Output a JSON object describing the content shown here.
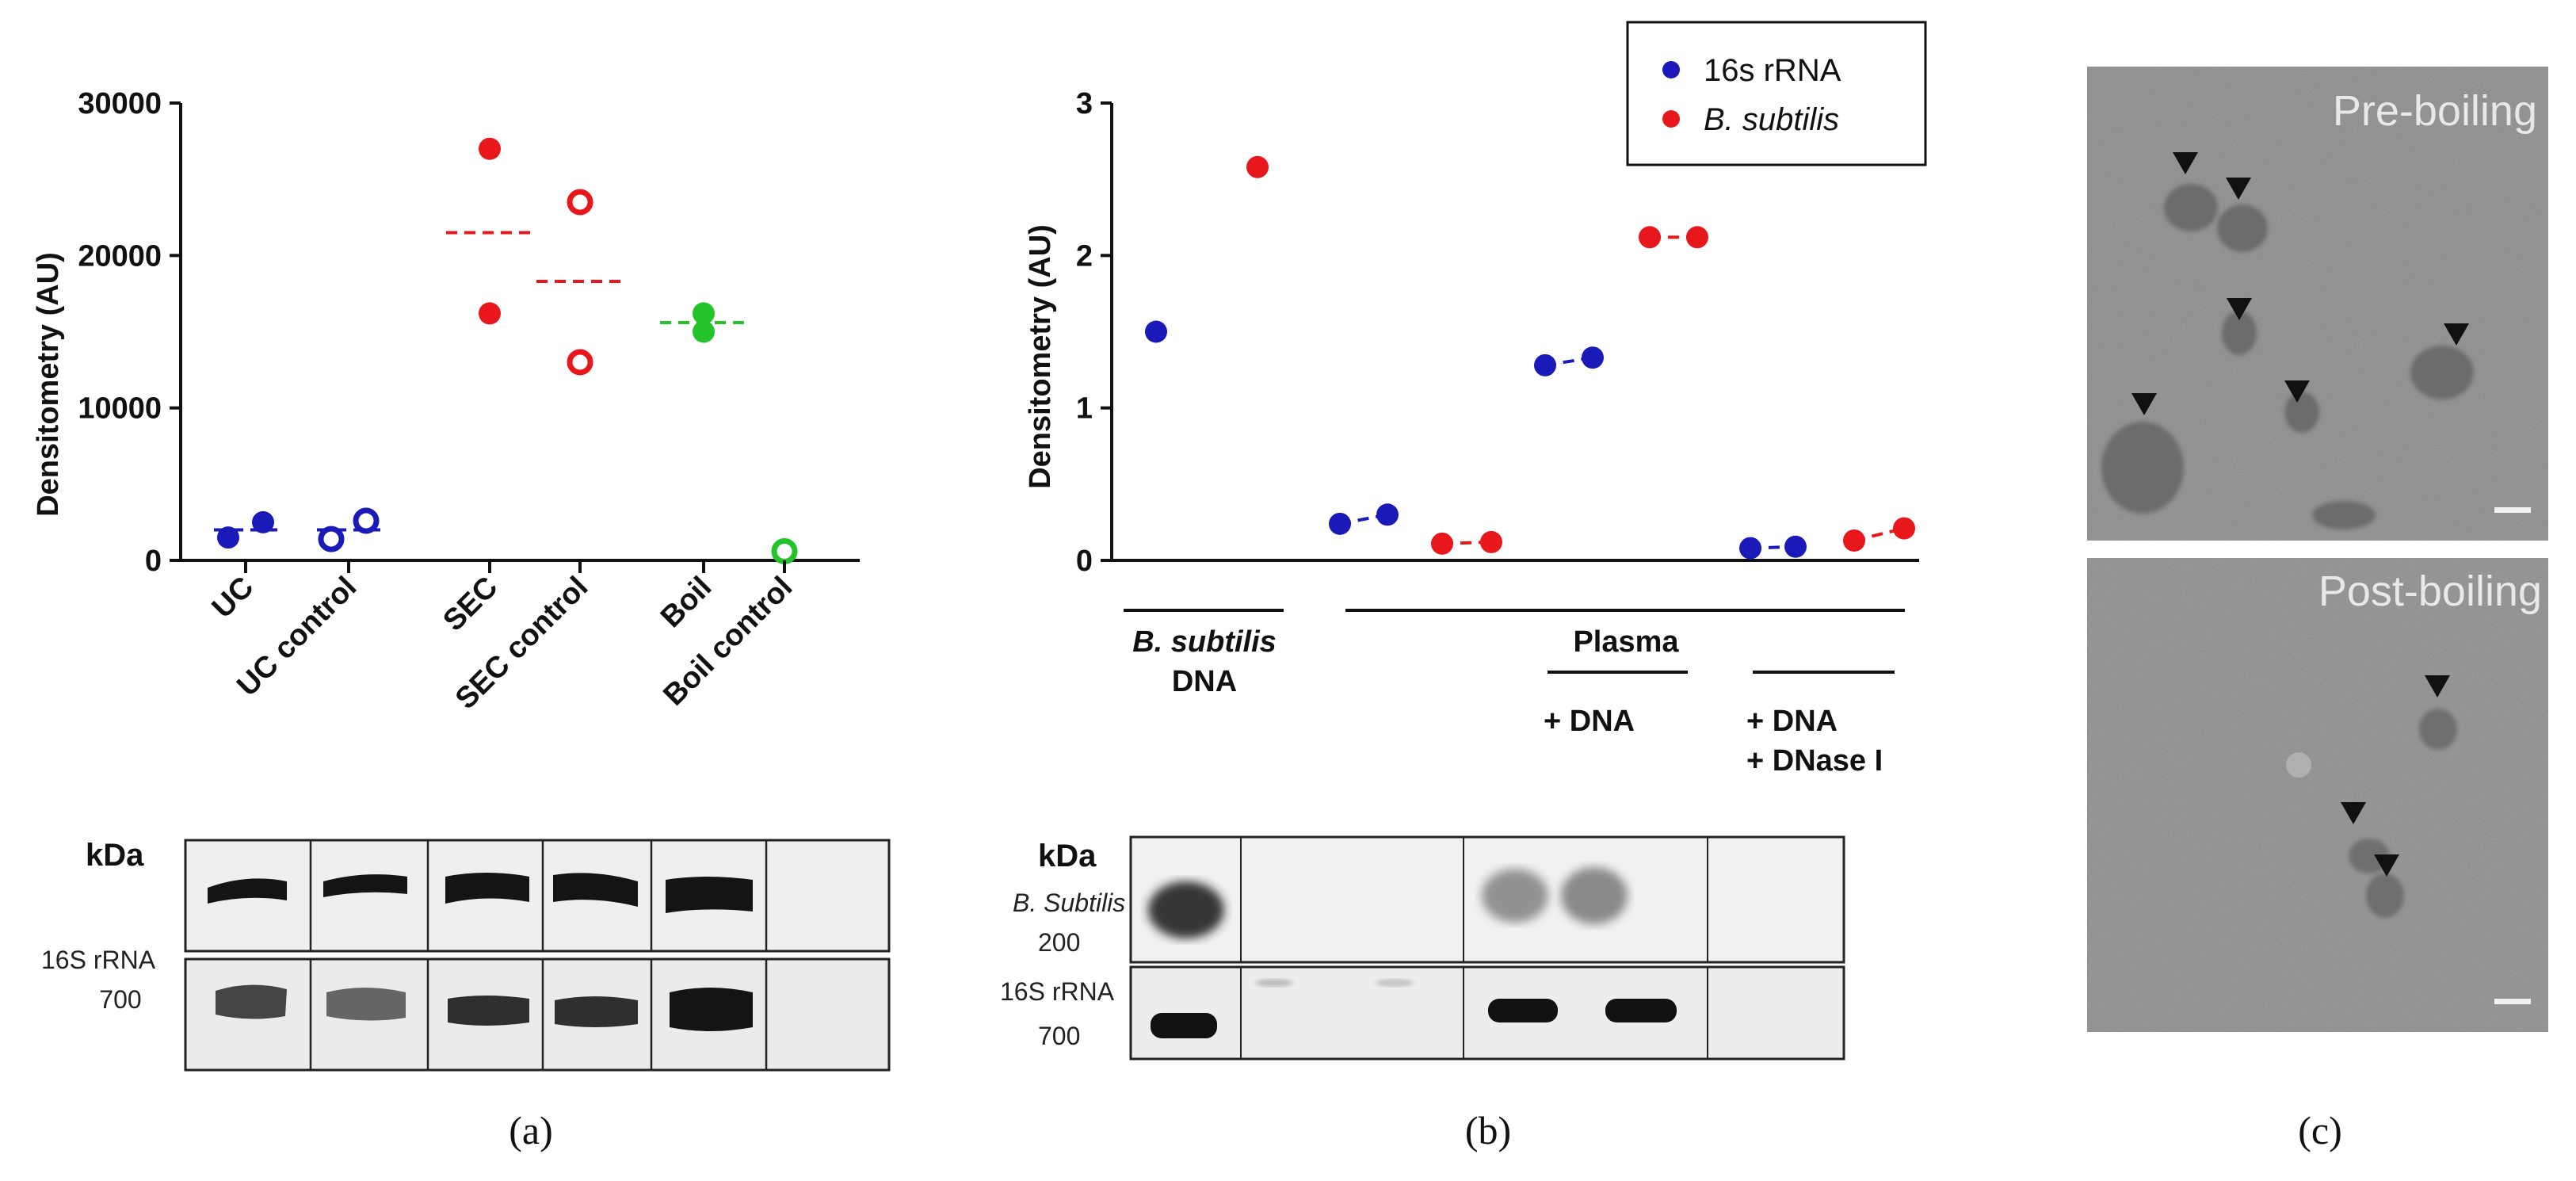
{
  "panel_labels": {
    "a": "(a)",
    "b": "(b)",
    "c": "(c)"
  },
  "colors": {
    "blue": "#1a1ab8",
    "red": "#e8171b",
    "green": "#22c42a"
  },
  "chart_data": [
    {
      "id": "a",
      "type": "scatter",
      "ylabel": "Densitometry (AU)",
      "ylim": [
        0,
        30000
      ],
      "yticks": [
        0,
        10000,
        20000,
        30000
      ],
      "categories": [
        "UC",
        "UC control",
        "SEC",
        "SEC control",
        "Boil",
        "Boil control"
      ],
      "points": [
        {
          "cat": 0,
          "y": 1500,
          "color": "blue",
          "hollow": false
        },
        {
          "cat": 0,
          "y": 2500,
          "color": "blue",
          "hollow": false
        },
        {
          "cat": 1,
          "y": 1400,
          "color": "blue",
          "hollow": true
        },
        {
          "cat": 1,
          "y": 2600,
          "color": "blue",
          "hollow": true
        },
        {
          "cat": 2,
          "y": 27000,
          "color": "red",
          "hollow": false
        },
        {
          "cat": 2,
          "y": 16200,
          "color": "red",
          "hollow": false
        },
        {
          "cat": 3,
          "y": 23500,
          "color": "red",
          "hollow": true
        },
        {
          "cat": 3,
          "y": 13000,
          "color": "red",
          "hollow": true
        },
        {
          "cat": 4,
          "y": 16200,
          "color": "green",
          "hollow": false
        },
        {
          "cat": 4,
          "y": 15000,
          "color": "green",
          "hollow": false
        },
        {
          "cat": 5,
          "y": 600,
          "color": "green",
          "hollow": true
        }
      ],
      "means": [
        {
          "cat": 0,
          "y": 2000,
          "color": "blue"
        },
        {
          "cat": 1,
          "y": 2000,
          "color": "blue"
        },
        {
          "cat": 2,
          "y": 21500,
          "color": "red"
        },
        {
          "cat": 3,
          "y": 18300,
          "color": "red"
        },
        {
          "cat": 4,
          "y": 15600,
          "color": "green"
        }
      ]
    },
    {
      "id": "b",
      "type": "scatter",
      "ylabel": "Densitometry (AU)",
      "ylim": [
        0,
        3
      ],
      "yticks": [
        0,
        1,
        2,
        3
      ],
      "legend": [
        {
          "label": "16s rRNA",
          "color": "blue",
          "italic": false
        },
        {
          "label": "B. subtilis",
          "color": "red",
          "italic": true
        }
      ],
      "points": [
        {
          "pos": 0,
          "y": 1.5,
          "color": "blue"
        },
        {
          "pos": 1,
          "y": 2.58,
          "color": "red"
        },
        {
          "pos": 2,
          "y": 0.24,
          "color": "blue"
        },
        {
          "pos": 2,
          "y": 0.3,
          "color": "blue"
        },
        {
          "pos": 3,
          "y": 0.11,
          "color": "red"
        },
        {
          "pos": 3,
          "y": 0.12,
          "color": "red"
        },
        {
          "pos": 4,
          "y": 1.28,
          "color": "blue"
        },
        {
          "pos": 4,
          "y": 1.33,
          "color": "blue"
        },
        {
          "pos": 5,
          "y": 2.12,
          "color": "red"
        },
        {
          "pos": 5,
          "y": 2.12,
          "color": "red"
        },
        {
          "pos": 6,
          "y": 0.08,
          "color": "blue"
        },
        {
          "pos": 6,
          "y": 0.09,
          "color": "blue"
        },
        {
          "pos": 7,
          "y": 0.13,
          "color": "red"
        },
        {
          "pos": 7,
          "y": 0.21,
          "color": "red"
        }
      ],
      "groups": {
        "bsub_line1": "B. subtilis",
        "bsub_line2": "DNA",
        "plasma": "Plasma",
        "dna": "+ DNA",
        "dnase_line1": "+ DNA",
        "dnase_line2": "+ DNase I"
      }
    }
  ],
  "blot_a": {
    "kda": "kDa",
    "label_line1": "16S rRNA",
    "label_line2": "700"
  },
  "blot_b": {
    "kda": "kDa",
    "bsub_label": "B. Subtilis",
    "bsub_size": "200",
    "rrna_label": "16S rRNA",
    "rrna_size": "700"
  },
  "micrographs": {
    "top_label": "Pre-boiling",
    "bottom_label": "Post-boiling"
  }
}
